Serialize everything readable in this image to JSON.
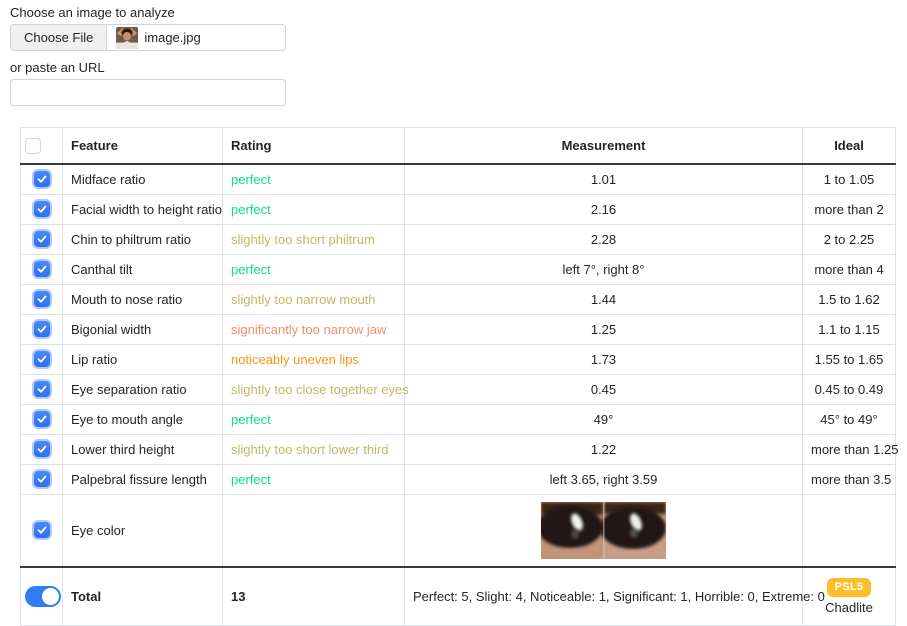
{
  "upload": {
    "label": "Choose an image to analyze",
    "choose_file_button": "Choose File",
    "filename": "image.jpg",
    "url_label": "or paste an URL",
    "url_input_value": ""
  },
  "table": {
    "headers": {
      "feature": "Feature",
      "rating": "Rating",
      "measurement": "Measurement",
      "ideal": "Ideal"
    },
    "rows": [
      {
        "checked": true,
        "feature": "Midface ratio",
        "rating": "perfect",
        "severity": "perfect",
        "measurement": "1.01",
        "ideal": "1 to 1.05"
      },
      {
        "checked": true,
        "feature": "Facial width to height ratio",
        "rating": "perfect",
        "severity": "perfect",
        "measurement": "2.16",
        "ideal": "more than 2"
      },
      {
        "checked": true,
        "feature": "Chin to philtrum ratio",
        "rating": "slightly too short philtrum",
        "severity": "slight",
        "measurement": "2.28",
        "ideal": "2 to 2.25"
      },
      {
        "checked": true,
        "feature": "Canthal tilt",
        "rating": "perfect",
        "severity": "perfect",
        "measurement": "left 7°, right 8°",
        "ideal": "more than 4"
      },
      {
        "checked": true,
        "feature": "Mouth to nose ratio",
        "rating": "slightly too narrow mouth",
        "severity": "slight",
        "measurement": "1.44",
        "ideal": "1.5 to 1.62"
      },
      {
        "checked": true,
        "feature": "Bigonial width",
        "rating": "significantly too narrow jaw",
        "severity": "significant",
        "measurement": "1.25",
        "ideal": "1.1 to 1.15"
      },
      {
        "checked": true,
        "feature": "Lip ratio",
        "rating": "noticeably uneven lips",
        "severity": "noticeable",
        "measurement": "1.73",
        "ideal": "1.55 to 1.65"
      },
      {
        "checked": true,
        "feature": "Eye separation ratio",
        "rating": "slightly too close together eyes",
        "severity": "slight",
        "measurement": "0.45",
        "ideal": "0.45 to 0.49"
      },
      {
        "checked": true,
        "feature": "Eye to mouth angle",
        "rating": "perfect",
        "severity": "perfect",
        "measurement": "49°",
        "ideal": "45° to 49°"
      },
      {
        "checked": true,
        "feature": "Lower third height",
        "rating": "slightly too short lower third",
        "severity": "slight",
        "measurement": "1.22",
        "ideal": "more than 1.25"
      },
      {
        "checked": true,
        "feature": "Palpebral fissure length",
        "rating": "perfect",
        "severity": "perfect",
        "measurement": "left 3.65, right 3.59",
        "ideal": "more than 3.5"
      }
    ],
    "eye_color_row": {
      "checked": true,
      "feature": "Eye color"
    },
    "total": {
      "toggle_on": true,
      "label": "Total",
      "score": "13",
      "summary": "Perfect: 5, Slight: 4, Noticeable: 1, Significant: 1, Horrible: 0, Extreme: 0",
      "badge": "PSL5",
      "badge_sub": "Chadlite"
    }
  },
  "colors": {
    "perfect": "#0de07e",
    "slight": "#c2b863",
    "noticeable": "#f5980f",
    "significant": "#ef8e70",
    "checkbox_blue": "#2e6ff2",
    "toggle_blue": "#2e7cf6",
    "badge_amber": "#fcbf29"
  }
}
